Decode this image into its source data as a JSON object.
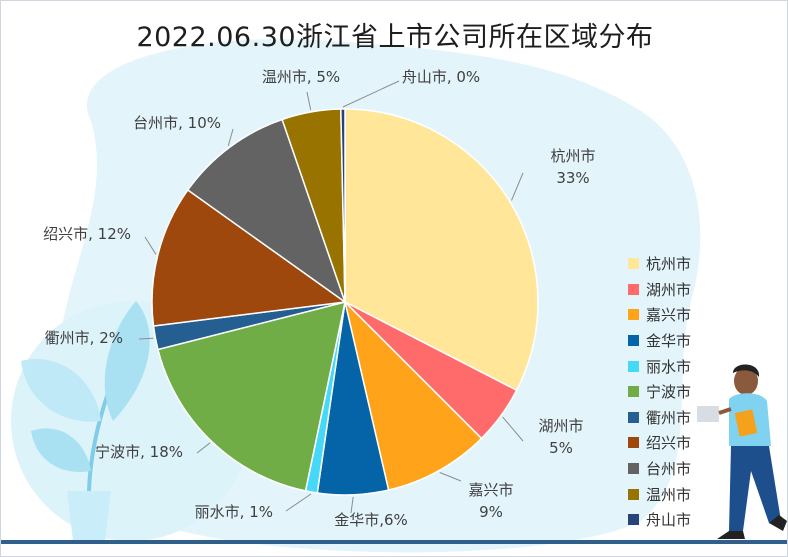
{
  "chart_data": {
    "type": "pie",
    "title": "2022.06.30浙江省上市公司所在区域分布",
    "categories": [
      "杭州市",
      "湖州市",
      "嘉兴市",
      "金华市",
      "丽水市",
      "宁波市",
      "衢州市",
      "绍兴市",
      "台州市",
      "温州市",
      "舟山市"
    ],
    "values": [
      33,
      5,
      9,
      6,
      1,
      18,
      2,
      12,
      10,
      5,
      0
    ],
    "data_labels": [
      "杭州市\n33%",
      "湖州市\n5%",
      "嘉兴市\n9%",
      "金华市,6%",
      "丽水市, 1%",
      "宁波市, 18%",
      "衢州市, 2%",
      "绍兴市, 12%",
      "台州市, 10%",
      "温州市, 5%",
      "舟山市, 0%"
    ],
    "colors": [
      "#ffe699",
      "#ff6b6b",
      "#ffa31a",
      "#0564a8",
      "#46d9f7",
      "#70ad47",
      "#255e91",
      "#9e480e",
      "#636363",
      "#997300",
      "#264478"
    ],
    "legend": "right",
    "start_angle": "12 o'clock",
    "direction": "clockwise"
  }
}
